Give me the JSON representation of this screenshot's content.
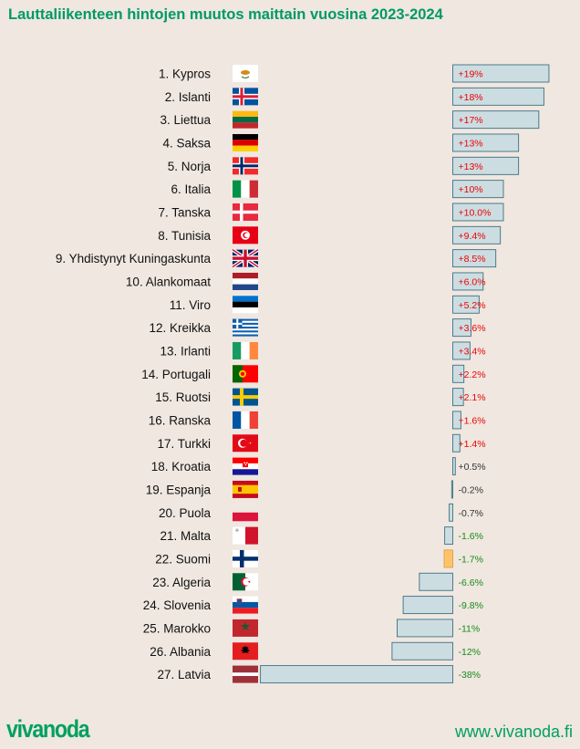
{
  "title": "Lauttaliikenteen hintojen muutos maittain vuosina 2023-2024",
  "footer": {
    "logo": "vivanoda",
    "site": "www.vivanoda.fi"
  },
  "colors": {
    "background": "#efe7e0",
    "bar": "#ccdde2",
    "bar_border": "#3d7080",
    "highlight_bar": "#ffc46b",
    "highlight_border": "#e0a030",
    "positive_text": "#ee0000",
    "neutral_text": "#333333",
    "negative_text": "#1a8a1a",
    "brand": "#009966"
  },
  "chart_data": {
    "type": "bar",
    "orientation": "horizontal",
    "title": "Lauttaliikenteen hintojen muutos maittain vuosina 2023-2024",
    "unit": "%",
    "xlim": [
      -38,
      19
    ],
    "highlight": "22. Suomi",
    "categories": [
      "1. Kypros",
      "2. Islanti",
      "3. Liettua",
      "4. Saksa",
      "5. Norja",
      "6. Italia",
      "7. Tanska",
      "8. Tunisia",
      "9. Yhdistynyt Kuningaskunta",
      "10. Alankomaat",
      "11. Viro",
      "12. Kreikka",
      "13. Irlanti",
      "14. Portugali",
      "15. Ruotsi",
      "16. Ranska",
      "17. Turkki",
      "18. Kroatia",
      "19. Espanja",
      "20. Puola",
      "21. Malta",
      "22. Suomi",
      "23. Algeria",
      "24. Slovenia",
      "25. Marokko",
      "26. Albania",
      "27. Latvia"
    ],
    "values": [
      19,
      18,
      17,
      13,
      13,
      10,
      10.0,
      9.4,
      8.5,
      6.0,
      5.2,
      3.6,
      3.4,
      2.2,
      2.1,
      1.6,
      1.4,
      0.5,
      -0.2,
      -0.7,
      -1.6,
      -1.7,
      -6.6,
      -9.8,
      -11,
      -12,
      -38
    ],
    "labels": [
      "+19%",
      "+18%",
      "+17%",
      "+13%",
      "+13%",
      "+10%",
      "+10.0%",
      "+9.4%",
      "+8.5%",
      "+6.0%",
      "+5.2%",
      "+3.6%",
      "+3.4%",
      "+2.2%",
      "+2.1%",
      "+1.6%",
      "+1.4%",
      "+0.5%",
      "-0.2%",
      "-0.7%",
      "-1.6%",
      "-1.7%",
      "-6.6%",
      "-9.8%",
      "-11%",
      "-12%",
      "-38%"
    ],
    "flags": [
      "cyprus-flag",
      "iceland-flag",
      "lithuania-flag",
      "germany-flag",
      "norway-flag",
      "italy-flag",
      "denmark-flag",
      "tunisia-flag",
      "uk-flag",
      "netherlands-flag",
      "estonia-flag",
      "greece-flag",
      "ireland-flag",
      "portugal-flag",
      "sweden-flag",
      "france-flag",
      "turkey-flag",
      "croatia-flag",
      "spain-flag",
      "poland-flag",
      "malta-flag",
      "finland-flag",
      "algeria-flag",
      "slovenia-flag",
      "morocco-flag",
      "albania-flag",
      "latvia-flag"
    ]
  }
}
